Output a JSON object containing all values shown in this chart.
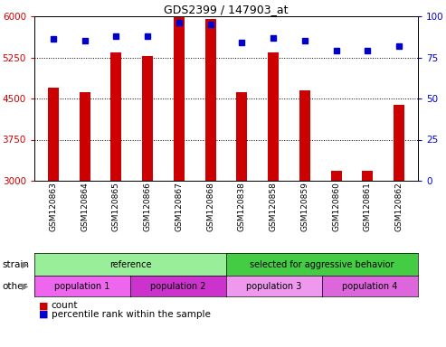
{
  "title": "GDS2399 / 147903_at",
  "samples": [
    "GSM120863",
    "GSM120864",
    "GSM120865",
    "GSM120866",
    "GSM120867",
    "GSM120868",
    "GSM120838",
    "GSM120858",
    "GSM120859",
    "GSM120860",
    "GSM120861",
    "GSM120862"
  ],
  "counts": [
    4700,
    4620,
    5340,
    5280,
    6000,
    5950,
    4620,
    5340,
    4650,
    3175,
    3175,
    4380
  ],
  "percentile_ranks": [
    86,
    85,
    88,
    88,
    96,
    95,
    84,
    87,
    85,
    79,
    79,
    82
  ],
  "bar_color": "#cc0000",
  "dot_color": "#0000cc",
  "ylim_left": [
    3000,
    6000
  ],
  "ylim_right": [
    0,
    100
  ],
  "yticks_left": [
    3000,
    3750,
    4500,
    5250,
    6000
  ],
  "yticks_right": [
    0,
    25,
    50,
    75,
    100
  ],
  "strain_groups": [
    {
      "label": "reference",
      "start": 0,
      "end": 6,
      "color": "#99ee99"
    },
    {
      "label": "selected for aggressive behavior",
      "start": 6,
      "end": 12,
      "color": "#44cc44"
    }
  ],
  "other_groups": [
    {
      "label": "population 1",
      "start": 0,
      "end": 3,
      "color": "#ee66ee"
    },
    {
      "label": "population 2",
      "start": 3,
      "end": 6,
      "color": "#cc33cc"
    },
    {
      "label": "population 3",
      "start": 6,
      "end": 9,
      "color": "#ee99ee"
    },
    {
      "label": "population 4",
      "start": 9,
      "end": 12,
      "color": "#dd66dd"
    }
  ],
  "strain_label": "strain",
  "other_label": "other",
  "legend_count_label": "count",
  "legend_pct_label": "percentile rank within the sample",
  "bg_color": "#ffffff",
  "plot_bg": "#ffffff",
  "grid_color": "#000000",
  "tick_label_color_left": "#cc0000",
  "tick_label_color_right": "#0000cc",
  "bar_width": 0.35
}
